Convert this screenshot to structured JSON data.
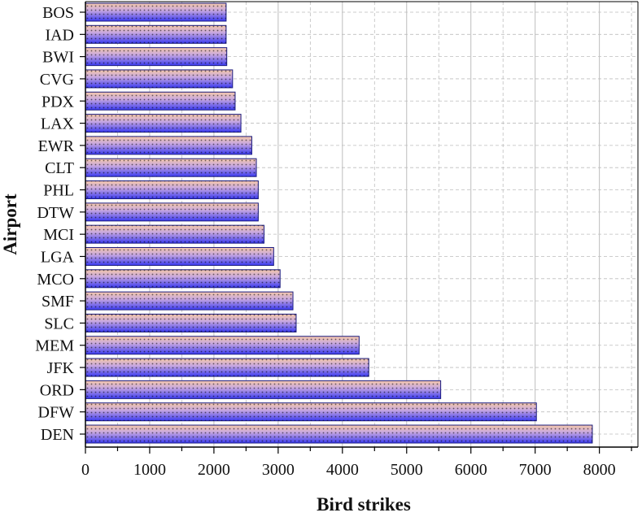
{
  "chart_data": {
    "type": "bar",
    "orientation": "horizontal",
    "xlabel": "Bird strikes",
    "ylabel": "Airport",
    "xlim": [
      0,
      8600
    ],
    "xticks": [
      0,
      1000,
      2000,
      3000,
      4000,
      5000,
      6000,
      7000,
      8000
    ],
    "grid": true,
    "categories": [
      "BOS",
      "IAD",
      "BWI",
      "CVG",
      "PDX",
      "LAX",
      "EWR",
      "CLT",
      "PHL",
      "DTW",
      "MCI",
      "LGA",
      "MCO",
      "SMF",
      "SLC",
      "MEM",
      "JFK",
      "ORD",
      "DFW",
      "DEN"
    ],
    "values": [
      2190,
      2190,
      2200,
      2290,
      2330,
      2420,
      2590,
      2660,
      2690,
      2690,
      2780,
      2930,
      3030,
      3230,
      3280,
      4260,
      4410,
      5530,
      7020,
      7890
    ],
    "colors": {
      "bar_top": "#F5C8A8",
      "bar_bottom": "#3B3BF0",
      "bar_edge": "#1A1A80",
      "grid": "#BDBDBD",
      "axis": "#000000"
    }
  }
}
